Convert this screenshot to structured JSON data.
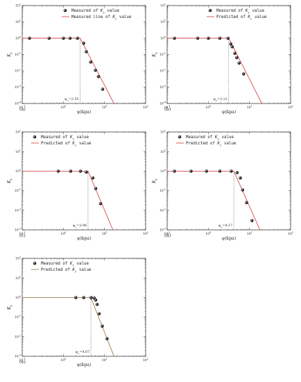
{
  "chart_data": [
    {
      "type": "line",
      "panel_label": "(a)",
      "xlabel": "ψ(kpa)",
      "ylabel_symbol": "K",
      "ylabel_sub": "r",
      "xscale": "log",
      "yscale": "log",
      "xlim": [
        0.1,
        100
      ],
      "ylim": [
        0.0001,
        100
      ],
      "x_ticks": [
        {
          "v": 0.1,
          "base": "10",
          "exp": "-1"
        },
        {
          "v": 1,
          "base": "10",
          "exp": "0"
        },
        {
          "v": 10,
          "base": "10",
          "exp": "1"
        },
        {
          "v": 100,
          "base": "10",
          "exp": "2"
        }
      ],
      "y_ticks": [
        {
          "v": 0.0001,
          "base": "10",
          "exp": "-4"
        },
        {
          "v": 0.001,
          "base": "10",
          "exp": "-3"
        },
        {
          "v": 0.01,
          "base": "10",
          "exp": "-2"
        },
        {
          "v": 0.1,
          "base": "10",
          "exp": "-1"
        },
        {
          "v": 1,
          "base": "10",
          "exp": "0"
        },
        {
          "v": 10,
          "base": "10",
          "exp": "1"
        },
        {
          "v": 100,
          "base": "10",
          "exp": "2"
        }
      ],
      "legend": {
        "position": "top-right",
        "measured_label": "Measured of",
        "measured_sym": "K",
        "measured_sub": "r",
        "measured_tail": "value",
        "line_label": "Measured line of",
        "line_sym": "K",
        "line_sub": "r",
        "line_tail": "value"
      },
      "series": [
        {
          "kind": "scatter",
          "points": [
            [
              0.15,
              1
            ],
            [
              0.45,
              1
            ],
            [
              1.0,
              1
            ],
            [
              1.45,
              1
            ],
            [
              2.2,
              1
            ],
            [
              3.1,
              0.5
            ],
            [
              3.6,
              0.15
            ],
            [
              4.6,
              0.035
            ],
            [
              6.0,
              0.011
            ],
            [
              7.1,
              0.0045
            ],
            [
              9.0,
              0.00075
            ]
          ]
        },
        {
          "kind": "line",
          "points": [
            [
              0.1,
              1
            ],
            [
              2.55,
              1
            ],
            [
              17,
              0.0001
            ]
          ]
        }
      ],
      "annotation": {
        "symbol": "ψ",
        "sub": "c",
        "value": "=2.55",
        "x": 2.55
      }
    },
    {
      "type": "line",
      "panel_label": "(b)",
      "xlabel": "ψ(kpa)",
      "ylabel_symbol": "K",
      "ylabel_sub": "r",
      "xscale": "log",
      "yscale": "log",
      "xlim": [
        0.1,
        100
      ],
      "ylim": [
        0.0001,
        100
      ],
      "x_ticks": [
        {
          "v": 0.1,
          "base": "10",
          "exp": "-1"
        },
        {
          "v": 1,
          "base": "10",
          "exp": "0"
        },
        {
          "v": 10,
          "base": "10",
          "exp": "1"
        },
        {
          "v": 100,
          "base": "10",
          "exp": "2"
        }
      ],
      "y_ticks": [
        {
          "v": 0.0001,
          "base": "10",
          "exp": "-4"
        },
        {
          "v": 0.001,
          "base": "10",
          "exp": "-3"
        },
        {
          "v": 0.01,
          "base": "10",
          "exp": "-2"
        },
        {
          "v": 0.1,
          "base": "10",
          "exp": "-1"
        },
        {
          "v": 1,
          "base": "10",
          "exp": "0"
        },
        {
          "v": 10,
          "base": "10",
          "exp": "1"
        },
        {
          "v": 100,
          "base": "10",
          "exp": "2"
        }
      ],
      "legend": {
        "position": "top-right",
        "measured_label": "Measured of",
        "measured_sym": "K",
        "measured_sub": "r",
        "measured_tail": "value",
        "line_label": "Predicted of",
        "line_sym": "K",
        "line_sub": "r",
        "line_tail": "value"
      },
      "series": [
        {
          "kind": "scatter",
          "points": [
            [
              0.15,
              1
            ],
            [
              0.55,
              1
            ],
            [
              1.0,
              1
            ],
            [
              1.9,
              1
            ],
            [
              3.0,
              1
            ],
            [
              3.5,
              0.45
            ],
            [
              3.8,
              0.3
            ],
            [
              4.4,
              0.12
            ],
            [
              4.9,
              0.065
            ],
            [
              5.6,
              0.03
            ],
            [
              7.2,
              0.0065
            ]
          ]
        },
        {
          "kind": "line",
          "points": [
            [
              0.1,
              1
            ],
            [
              3.13,
              1
            ],
            [
              20,
              0.0001
            ]
          ]
        }
      ],
      "annotation": {
        "symbol": "ψ",
        "sub": "c",
        "value": "=3.13",
        "x": 3.13
      }
    },
    {
      "type": "line",
      "panel_label": "(c)",
      "xlabel": "ψ(kpa)",
      "ylabel_symbol": "K",
      "ylabel_sub": "r",
      "xscale": "log",
      "yscale": "log",
      "xlim": [
        0.1,
        100
      ],
      "ylim": [
        0.001,
        100
      ],
      "x_ticks": [
        {
          "v": 0.1,
          "base": "10",
          "exp": "-1"
        },
        {
          "v": 1,
          "base": "10",
          "exp": "0"
        },
        {
          "v": 10,
          "base": "10",
          "exp": "1"
        },
        {
          "v": 100,
          "base": "10",
          "exp": "2"
        }
      ],
      "y_ticks": [
        {
          "v": 0.001,
          "base": "10",
          "exp": "-3"
        },
        {
          "v": 0.01,
          "base": "10",
          "exp": "-2"
        },
        {
          "v": 0.1,
          "base": "10",
          "exp": "-1"
        },
        {
          "v": 1,
          "base": "10",
          "exp": "0"
        },
        {
          "v": 10,
          "base": "10",
          "exp": "1"
        },
        {
          "v": 100,
          "base": "10",
          "exp": "2"
        }
      ],
      "legend": {
        "position": "top-left",
        "measured_label": "Measured of",
        "measured_sym": "K",
        "measured_sub": "r",
        "measured_tail": "value",
        "line_label": "Predicted of",
        "line_sym": "K",
        "line_sub": "r",
        "line_tail": "value"
      },
      "series": [
        {
          "kind": "scatter",
          "points": [
            [
              0.75,
              1
            ],
            [
              1.5,
              1
            ],
            [
              2.6,
              1
            ],
            [
              3.6,
              0.9
            ],
            [
              5.2,
              0.45
            ],
            [
              6.1,
              0.13
            ],
            [
              8.0,
              0.022
            ]
          ]
        },
        {
          "kind": "line",
          "points": [
            [
              0.1,
              1
            ],
            [
              3.98,
              1
            ],
            [
              16,
              0.001
            ]
          ]
        }
      ],
      "annotation": {
        "symbol": "ψ",
        "sub": "c",
        "value": "=3.98",
        "x": 3.98
      }
    },
    {
      "type": "line",
      "panel_label": "(d)",
      "xlabel": "ψ(kpa)",
      "ylabel_symbol": "K",
      "ylabel_sub": "r",
      "xscale": "log",
      "yscale": "log",
      "xlim": [
        0.1,
        100
      ],
      "ylim": [
        0.001,
        100
      ],
      "x_ticks": [
        {
          "v": 0.1,
          "base": "10",
          "exp": "-1"
        },
        {
          "v": 1,
          "base": "10",
          "exp": "0"
        },
        {
          "v": 10,
          "base": "10",
          "exp": "1"
        },
        {
          "v": 100,
          "base": "10",
          "exp": "2"
        }
      ],
      "y_ticks": [
        {
          "v": 0.001,
          "base": "10",
          "exp": "-3"
        },
        {
          "v": 0.01,
          "base": "10",
          "exp": "-2"
        },
        {
          "v": 0.1,
          "base": "10",
          "exp": "-1"
        },
        {
          "v": 1,
          "base": "10",
          "exp": "0"
        },
        {
          "v": 10,
          "base": "10",
          "exp": "1"
        },
        {
          "v": 100,
          "base": "10",
          "exp": "2"
        }
      ],
      "legend": {
        "position": "top-left",
        "measured_label": "Measured of",
        "measured_sym": "K",
        "measured_sub": "r",
        "measured_tail": "value",
        "line_label": "Predicted of",
        "line_sym": "K",
        "line_sub": "r",
        "line_tail": "value"
      },
      "series": [
        {
          "kind": "scatter",
          "points": [
            [
              0.15,
              1
            ],
            [
              0.38,
              1
            ],
            [
              0.9,
              1
            ],
            [
              1.9,
              1
            ],
            [
              3.6,
              1
            ],
            [
              5.0,
              0.85
            ],
            [
              6.0,
              0.45
            ],
            [
              6.8,
              0.11
            ],
            [
              8.5,
              0.025
            ],
            [
              11.5,
              0.003
            ]
          ]
        },
        {
          "kind": "line",
          "points": [
            [
              0.1,
              1
            ],
            [
              4.17,
              1
            ],
            [
              18,
              0.001
            ]
          ]
        }
      ],
      "annotation": {
        "symbol": "ψ",
        "sub": "c",
        "value": "=4.17",
        "x": 4.17
      }
    },
    {
      "type": "line",
      "panel_label": "(e)",
      "xlabel": "ψ(kpa)",
      "ylabel_symbol": "K",
      "ylabel_sub": "r",
      "xscale": "log",
      "yscale": "log",
      "xlim": [
        0.1,
        100
      ],
      "ylim": [
        0.001,
        100
      ],
      "x_ticks": [
        {
          "v": 0.1,
          "base": "10",
          "exp": "-1"
        },
        {
          "v": 1,
          "base": "10",
          "exp": "0"
        },
        {
          "v": 10,
          "base": "10",
          "exp": "1"
        },
        {
          "v": 100,
          "base": "10",
          "exp": "2"
        }
      ],
      "y_ticks": [
        {
          "v": 0.001,
          "base": "10",
          "exp": "-3"
        },
        {
          "v": 0.01,
          "base": "10",
          "exp": "-2"
        },
        {
          "v": 0.1,
          "base": "10",
          "exp": "-1"
        },
        {
          "v": 1,
          "base": "10",
          "exp": "0"
        },
        {
          "v": 10,
          "base": "10",
          "exp": "1"
        },
        {
          "v": 100,
          "base": "10",
          "exp": "2"
        }
      ],
      "legend": {
        "position": "top-left",
        "measured_label": "Measured of",
        "measured_sym": "K",
        "measured_sub": "r",
        "measured_tail": "value",
        "line_label": "Predicted of",
        "line_sym": "K",
        "line_sub": "r",
        "line_tail": "value"
      },
      "series": [
        {
          "kind": "scatter",
          "points": [
            [
              2.0,
              1
            ],
            [
              3.1,
              1
            ],
            [
              4.7,
              1
            ],
            [
              5.6,
              0.95
            ],
            [
              6.1,
              0.75
            ],
            [
              6.6,
              0.45
            ],
            [
              7.4,
              0.15
            ],
            [
              8.8,
              0.035
            ],
            [
              11.5,
              0.008
            ]
          ]
        },
        {
          "kind": "line",
          "points": [
            [
              0.1,
              1
            ],
            [
              4.67,
              1
            ],
            [
              17,
              0.001
            ]
          ]
        }
      ],
      "annotation": {
        "symbol": "ψ",
        "sub": "c",
        "value": "=4.67",
        "x": 4.67
      }
    }
  ],
  "colors": {
    "line_main": "#d94a4a",
    "line_e": "#a07b50",
    "marker": "#111111",
    "axis": "#222222",
    "dotted": "#555555"
  }
}
